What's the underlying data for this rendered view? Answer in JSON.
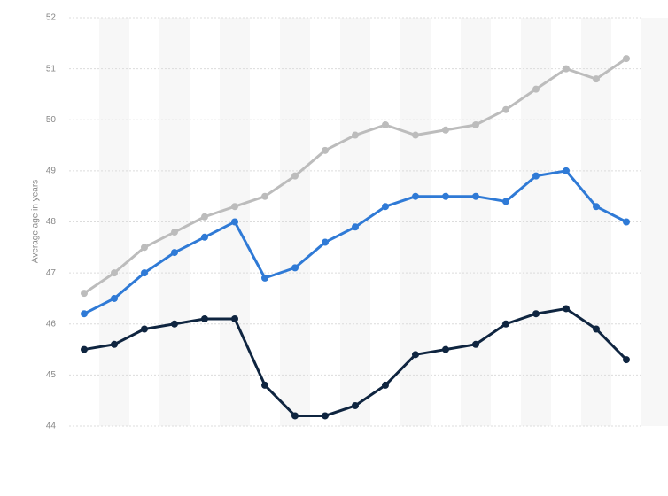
{
  "chart_data": {
    "type": "line",
    "y_label": "Average age in years",
    "categories": [
      null,
      null,
      null,
      null,
      null,
      null,
      null,
      null,
      null,
      null,
      null,
      null,
      null,
      null,
      null,
      null,
      null,
      null,
      null
    ],
    "series": [
      {
        "color": "#bcbcbc",
        "values": [
          46.6,
          47.0,
          47.5,
          47.8,
          48.1,
          48.3,
          48.5,
          48.9,
          49.4,
          49.7,
          49.9,
          49.7,
          49.8,
          49.9,
          50.2,
          50.6,
          51.0,
          50.8,
          51.2
        ]
      },
      {
        "color": "#2f7ad6",
        "values": [
          46.2,
          46.5,
          47.0,
          47.4,
          47.7,
          48.0,
          46.9,
          47.1,
          47.6,
          47.9,
          48.3,
          48.5,
          48.5,
          48.5,
          48.4,
          48.9,
          49.0,
          48.3,
          48.0
        ]
      },
      {
        "color": "#0f2540",
        "values": [
          45.5,
          45.6,
          45.9,
          46.0,
          46.1,
          46.1,
          44.8,
          44.2,
          44.2,
          44.4,
          44.8,
          45.4,
          45.5,
          45.6,
          46.0,
          46.2,
          46.3,
          45.9,
          45.3
        ]
      }
    ],
    "ylim": [
      44,
      52
    ],
    "yticks": [
      44,
      45,
      46,
      47,
      48,
      49,
      50,
      51,
      52
    ],
    "grid": true
  }
}
